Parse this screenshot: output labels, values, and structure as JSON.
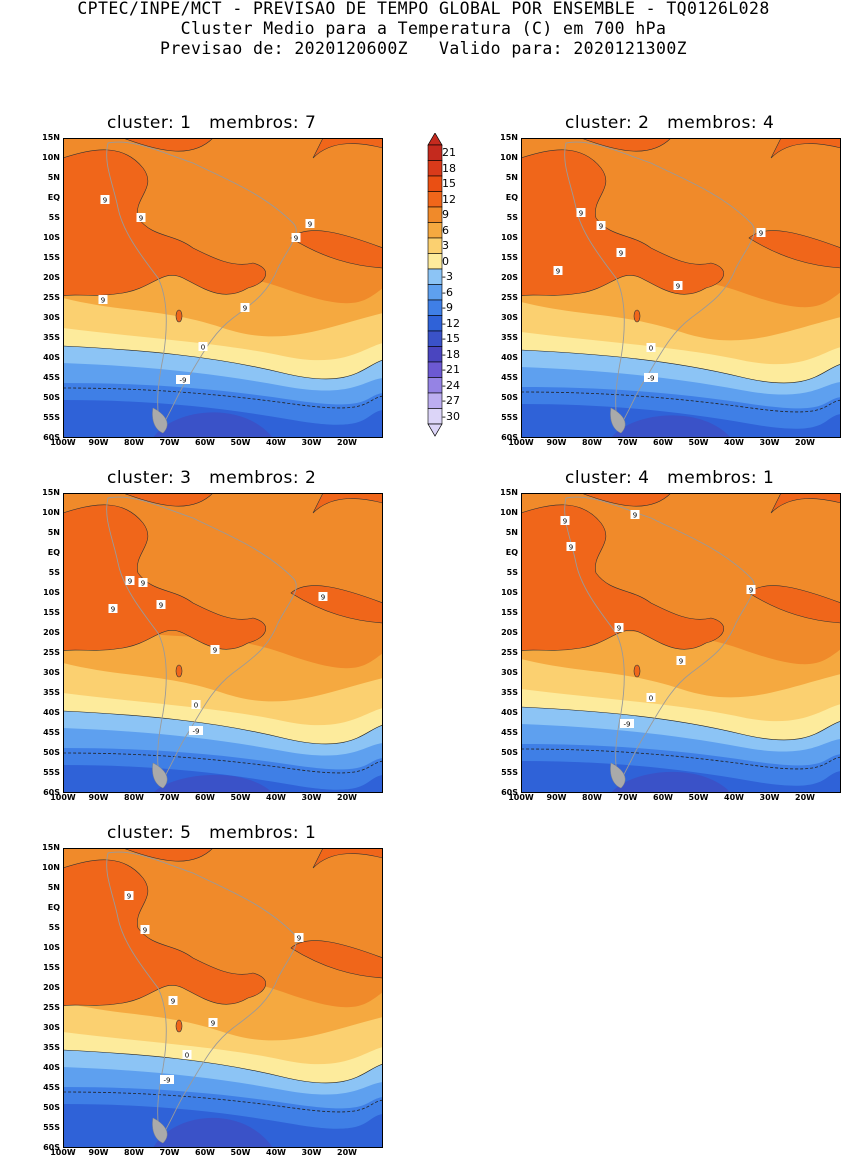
{
  "header": {
    "line1": "CPTEC/INPE/MCT - PREVISAO DE TEMPO GLOBAL POR ENSEMBLE - TQ0126L028",
    "line2": "Cluster Medio para a Temperatura (C) em 700 hPa",
    "line3": "Previsao de: 2020120600Z   Valido para: 2020121300Z"
  },
  "axes": {
    "lat_labels": [
      "15N",
      "10N",
      "5N",
      "EQ",
      "5S",
      "10S",
      "15S",
      "20S",
      "25S",
      "30S",
      "35S",
      "40S",
      "45S",
      "50S",
      "55S",
      "60S"
    ],
    "lon_labels": [
      "100W",
      "90W",
      "80W",
      "70W",
      "60W",
      "50W",
      "40W",
      "30W",
      "20W"
    ]
  },
  "colorbar": {
    "labels": [
      "21",
      "18",
      "15",
      "12",
      "9",
      "6",
      "3",
      "0",
      "-3",
      "-6",
      "-9",
      "-12",
      "-15",
      "-18",
      "-21",
      "-24",
      "-27",
      "-30"
    ],
    "colors": [
      "#c42a1e",
      "#d93a1a",
      "#ea4f13",
      "#f0661a",
      "#f08a2a",
      "#f5a940",
      "#fbd070",
      "#fdeb9c",
      "#8cc4f5",
      "#5ea0ef",
      "#3f7fe6",
      "#2f62d8",
      "#3a52c8",
      "#4a45bf",
      "#6c59d2",
      "#9583e4",
      "#bcaef0",
      "#dcd5f8"
    ]
  },
  "panels": [
    {
      "title": "cluster: 1   membros: 7",
      "labels": [
        "9",
        "9",
        "9",
        "9",
        "9",
        "9",
        "0",
        "-9"
      ]
    },
    {
      "title": "cluster: 2   membros: 4",
      "labels": [
        "9",
        "9",
        "9",
        "9",
        "9",
        "9",
        "0",
        "-9"
      ]
    },
    {
      "title": "cluster: 3   membros: 2",
      "labels": [
        "9",
        "9",
        "9",
        "9",
        "9",
        "9",
        "0",
        "-9"
      ]
    },
    {
      "title": "cluster: 4   membros: 1",
      "labels": [
        "9",
        "9",
        "9",
        "9",
        "9",
        "9",
        "0",
        "-9"
      ]
    },
    {
      "title": "cluster: 5   membros: 1",
      "labels": [
        "9",
        "9",
        "9",
        "9",
        "9",
        "0",
        "-9"
      ]
    }
  ]
}
